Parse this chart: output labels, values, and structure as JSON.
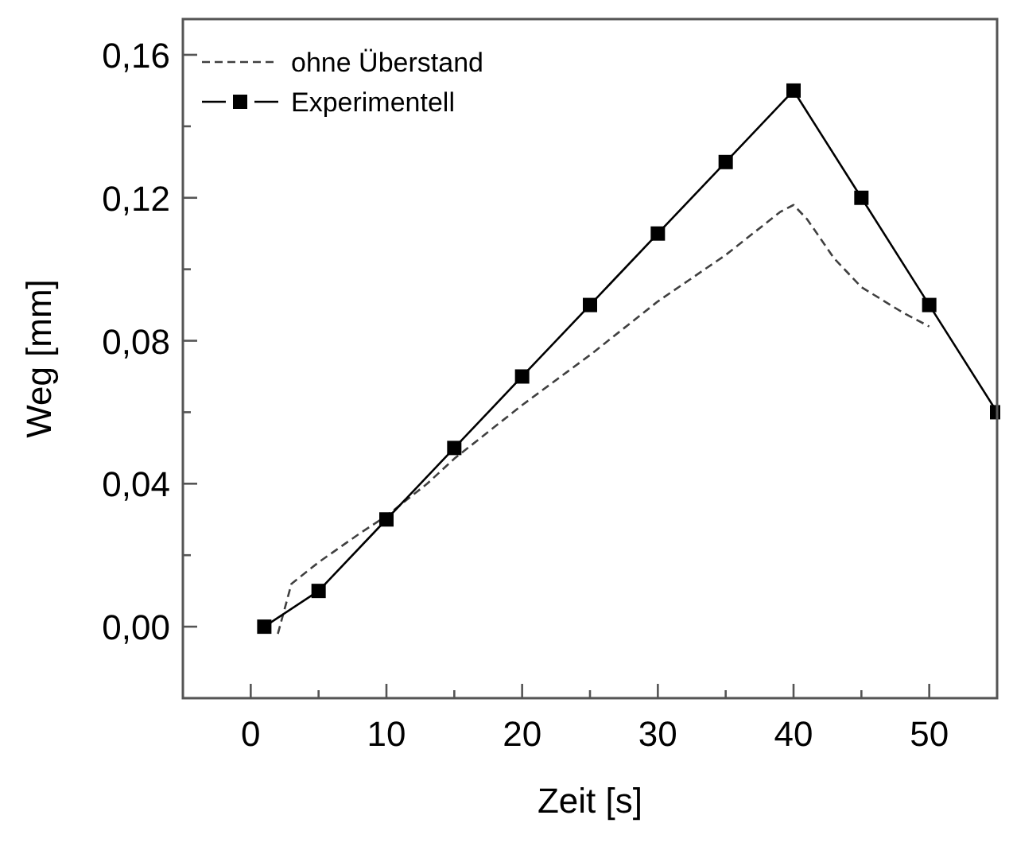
{
  "chart_data": {
    "type": "line",
    "xlabel": "Zeit [s]",
    "ylabel": "Weg [mm]",
    "xlim": [
      -5,
      55
    ],
    "ylim": [
      -0.02,
      0.17
    ],
    "xticks": [
      0,
      {
        "value": 5,
        "label": null
      },
      10,
      {
        "value": 15,
        "label": null
      },
      20,
      {
        "value": 25,
        "label": null
      },
      30,
      {
        "value": 35,
        "label": null
      },
      40,
      {
        "value": 45,
        "label": null
      },
      50
    ],
    "yticks": [
      {
        "value": 0,
        "label": "0,00"
      },
      {
        "value": 0.02,
        "label": null
      },
      {
        "value": 0.04,
        "label": "0,04"
      },
      {
        "value": 0.06,
        "label": null
      },
      {
        "value": 0.08,
        "label": "0,08"
      },
      {
        "value": 0.1,
        "label": null
      },
      {
        "value": 0.12,
        "label": "0,12"
      },
      {
        "value": 0.14,
        "label": null
      },
      {
        "value": 0.16,
        "label": "0,16"
      }
    ],
    "grid": false,
    "legend": "top left",
    "series": [
      {
        "name": "ohne Überstand",
        "color": "#404040",
        "line_style": "dashed",
        "marker": "none",
        "x": [
          2,
          3,
          5,
          8,
          10,
          13,
          15,
          20,
          25,
          30,
          35,
          39,
          40,
          41,
          43,
          45,
          48,
          50
        ],
        "values": [
          -0.002,
          0.012,
          0.018,
          0.026,
          0.031,
          0.04,
          0.047,
          0.062,
          0.076,
          0.091,
          0.104,
          0.116,
          0.118,
          0.114,
          0.103,
          0.095,
          0.088,
          0.084
        ]
      },
      {
        "name": "Experimentell",
        "color": "#000000",
        "line_style": "solid",
        "marker": "square",
        "x": [
          1,
          5,
          10,
          15,
          20,
          25,
          30,
          35,
          40,
          45,
          50,
          55
        ],
        "values": [
          0,
          0.01,
          0.03,
          0.05,
          0.07,
          0.09,
          0.11,
          0.13,
          0.15,
          0.12,
          0.09,
          0.06
        ]
      }
    ]
  }
}
